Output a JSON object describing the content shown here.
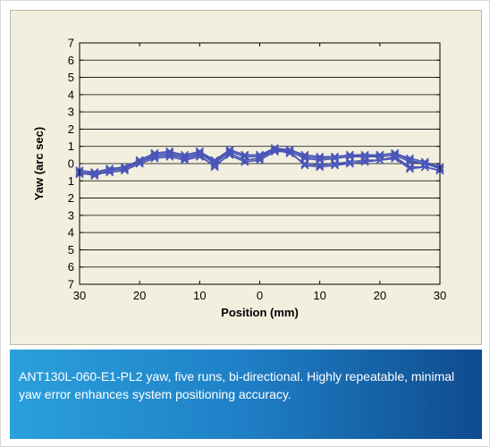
{
  "caption": {
    "text": "ANT130L-060-E1-PL2 yaw, five runs, bi-directional. Highly repeatable, minimal yaw error enhances system positioning accuracy."
  },
  "colors": {
    "panel_background": "#f2efdf",
    "series": "#4a56b8",
    "caption_gradient_start": "#2aa0dc",
    "caption_gradient_end": "#0f4b8e"
  },
  "chart_data": {
    "type": "line",
    "title": "",
    "xlabel": "Position (mm)",
    "ylabel": "Yaw (arc sec)",
    "xlim": [
      -30,
      30
    ],
    "ylim": [
      -7,
      7
    ],
    "x_tick_values": [
      -30,
      -20,
      -10,
      0,
      10,
      20,
      30
    ],
    "x_tick_labels": [
      "30",
      "20",
      "10",
      "0",
      "10",
      "20",
      "30"
    ],
    "y_tick_values": [
      7,
      6,
      5,
      4,
      3,
      2,
      1,
      0,
      -1,
      -2,
      -3,
      -4,
      -5,
      -6,
      -7
    ],
    "y_tick_labels": [
      "7",
      "6",
      "5",
      "4",
      "3",
      "2",
      "1",
      "0",
      "1",
      "2",
      "3",
      "4",
      "5",
      "6",
      "7"
    ],
    "grid": "horizontal",
    "legend": "none",
    "marker": "x",
    "x": [
      -30,
      -27.5,
      -25,
      -22.5,
      -20,
      -17.5,
      -15,
      -12.5,
      -10,
      -7.5,
      -5,
      -2.5,
      0,
      2.5,
      5,
      7.5,
      10,
      12.5,
      15,
      17.5,
      20,
      22.5,
      25,
      27.5,
      30
    ],
    "series": [
      {
        "values": [
          -0.6,
          -0.6,
          -0.4,
          -0.3,
          0.2,
          0.6,
          0.7,
          0.5,
          0.7,
          0.2,
          0.8,
          0.5,
          0.5,
          0.9,
          0.8,
          0.5,
          0.4,
          0.4,
          0.5,
          0.5,
          0.5,
          0.6,
          0.3,
          0.1,
          -0.2
        ]
      },
      {
        "values": [
          -0.5,
          -0.7,
          -0.4,
          -0.3,
          0.1,
          0.5,
          0.6,
          0.3,
          0.6,
          0.0,
          0.7,
          0.4,
          0.4,
          0.8,
          0.7,
          0.3,
          0.2,
          0.3,
          0.4,
          0.4,
          0.4,
          0.5,
          0.1,
          0.0,
          -0.3
        ]
      },
      {
        "values": [
          -0.6,
          -0.5,
          -0.3,
          -0.2,
          0.2,
          0.6,
          0.7,
          0.4,
          0.7,
          0.1,
          0.8,
          0.5,
          0.5,
          0.8,
          0.8,
          0.4,
          0.3,
          0.4,
          0.5,
          0.4,
          0.5,
          0.6,
          0.2,
          0.0,
          -0.2
        ]
      },
      {
        "values": [
          -0.4,
          -0.5,
          -0.3,
          -0.2,
          0.1,
          0.4,
          0.5,
          0.3,
          0.5,
          -0.2,
          0.6,
          0.2,
          0.3,
          0.8,
          0.6,
          0.0,
          -0.1,
          0.0,
          0.1,
          0.2,
          0.2,
          0.4,
          -0.2,
          -0.2,
          -0.4
        ]
      },
      {
        "values": [
          -0.5,
          -0.6,
          -0.5,
          -0.4,
          0.0,
          0.3,
          0.4,
          0.2,
          0.4,
          -0.1,
          0.5,
          0.1,
          0.2,
          0.7,
          0.7,
          -0.1,
          -0.2,
          -0.1,
          0.0,
          0.1,
          0.2,
          0.3,
          -0.3,
          -0.2,
          -0.4
        ]
      }
    ]
  }
}
